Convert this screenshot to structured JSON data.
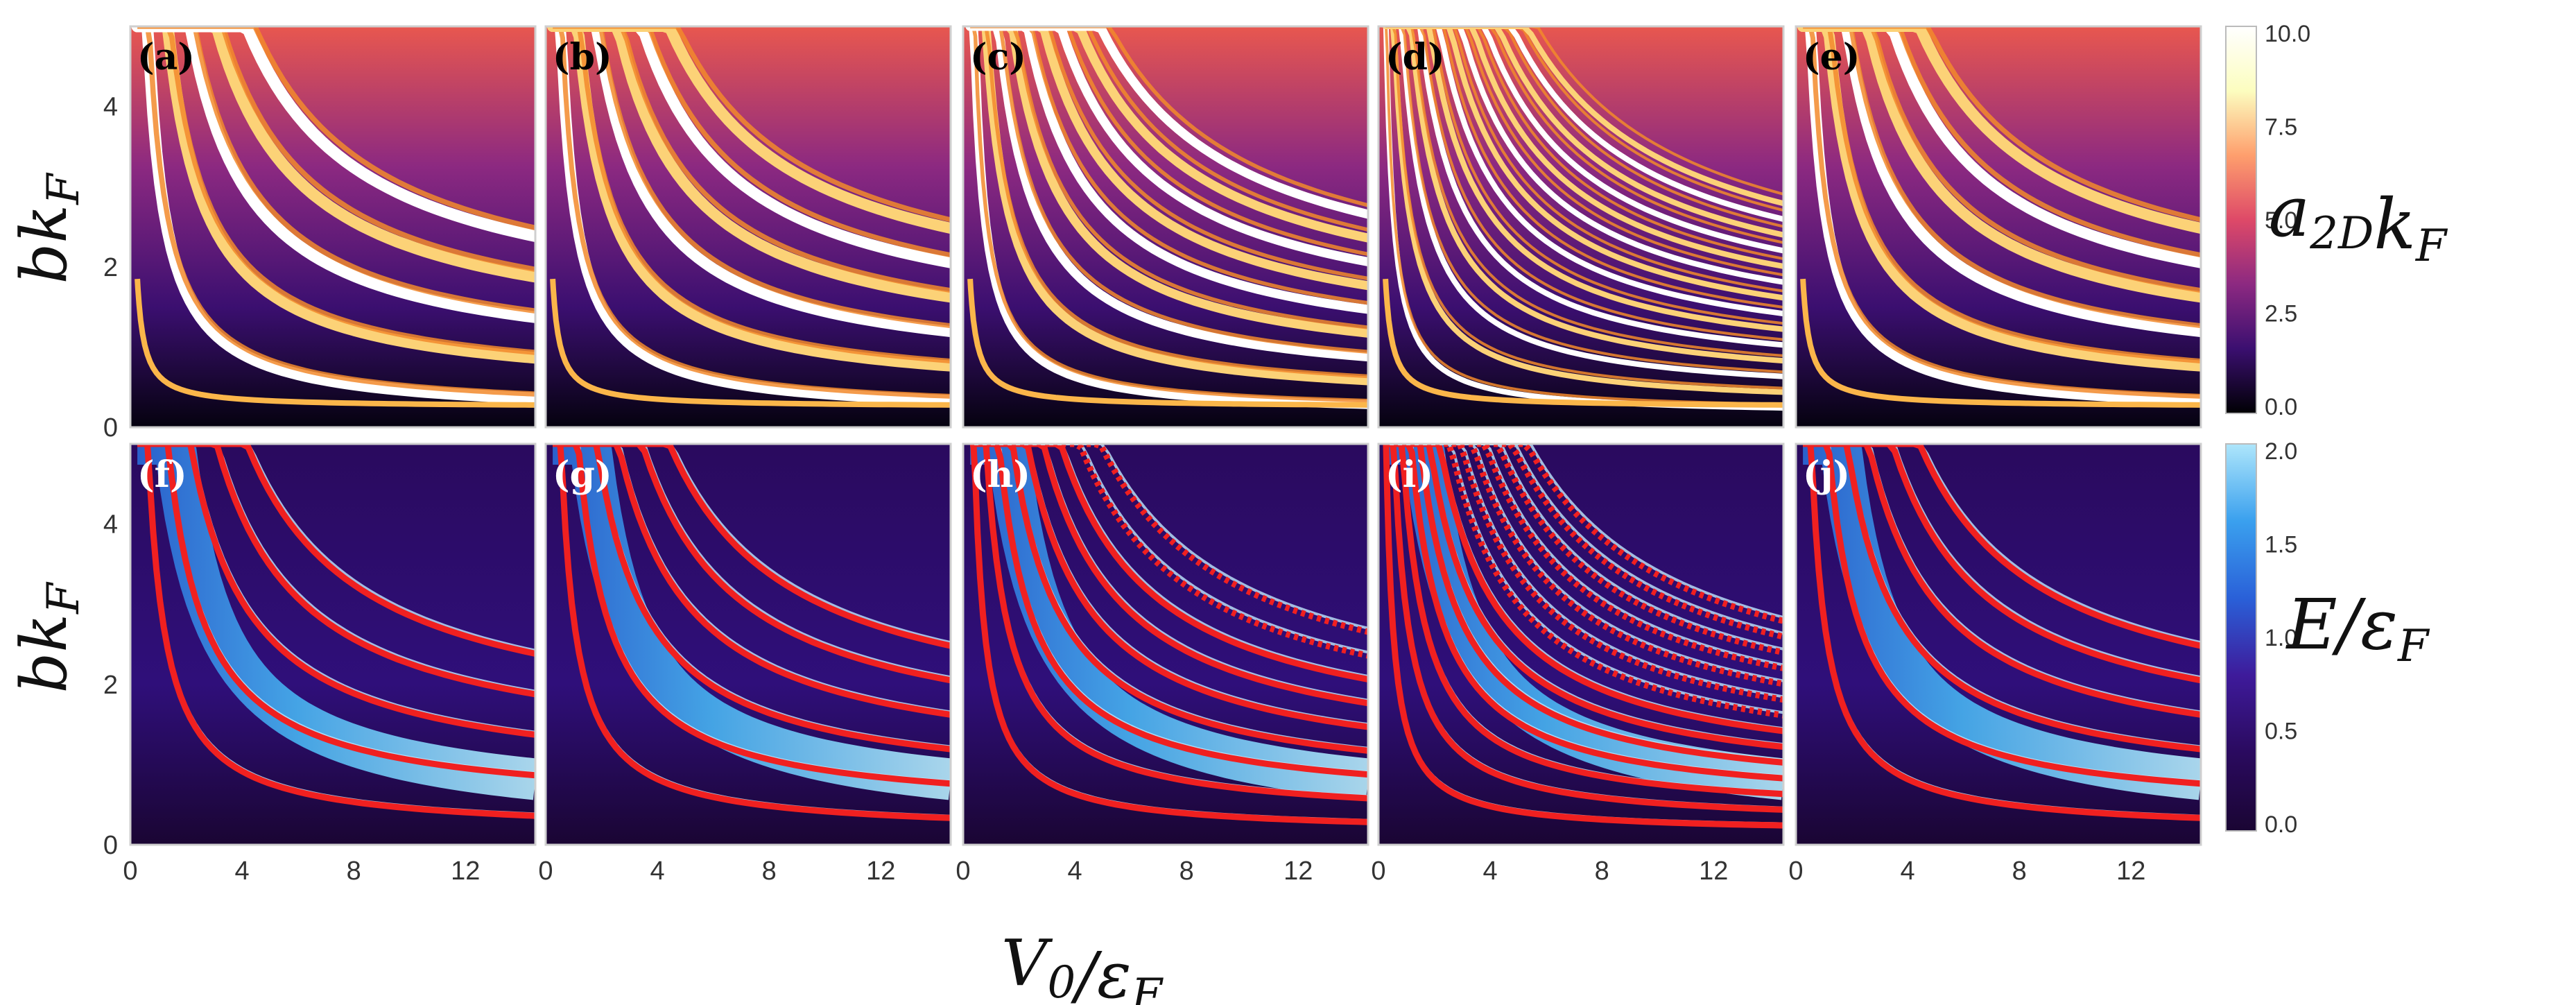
{
  "chart_data": {
    "type": "heatmap",
    "rows": [
      {
        "name": "top",
        "quantity_label": {
          "main": "a",
          "sub": "2D",
          "tail": "k",
          "tail_sub": "F"
        },
        "colorscale": [
          "#000004",
          "#3b0f70",
          "#8c2981",
          "#de4968",
          "#fe9f6d",
          "#fcfdbf",
          "#ffffff"
        ],
        "colorbar_ticks": [
          "0.0",
          "2.5",
          "5.0",
          "7.5",
          "10.0"
        ],
        "colorbar_range": [
          0,
          10
        ],
        "panels": [
          {
            "label": "(a)",
            "label_color": "#000000",
            "n_curves": 5
          },
          {
            "label": "(b)",
            "label_color": "#000000",
            "n_curves": 6
          },
          {
            "label": "(c)",
            "label_color": "#000000",
            "n_curves": 9
          },
          {
            "label": "(d)",
            "label_color": "#000000",
            "n_curves": 14
          },
          {
            "label": "(e)",
            "label_color": "#000000",
            "n_curves": 6
          }
        ]
      },
      {
        "name": "bottom",
        "quantity_label": {
          "main": "E/ε",
          "sub": "F"
        },
        "colorscale": [
          "#1a0533",
          "#2a0a5e",
          "#3e1a9a",
          "#2a60d8",
          "#3aa0ee",
          "#aee6fb"
        ],
        "colorbar_ticks": [
          "0.0",
          "0.5",
          "1.0",
          "1.5",
          "2.0"
        ],
        "colorbar_range": [
          0,
          2
        ],
        "overlay_color": "#f02020",
        "panels": [
          {
            "label": "(f)",
            "label_color": "#ffffff",
            "n_curves": 5
          },
          {
            "label": "(g)",
            "label_color": "#ffffff",
            "n_curves": 6
          },
          {
            "label": "(h)",
            "label_color": "#ffffff",
            "n_curves": 9
          },
          {
            "label": "(i)",
            "label_color": "#ffffff",
            "n_curves": 14
          },
          {
            "label": "(j)",
            "label_color": "#ffffff",
            "n_curves": 6
          }
        ]
      }
    ],
    "x_ticks": [
      "0",
      "4",
      "8",
      "12"
    ],
    "x_tick_values": [
      0,
      4,
      8,
      12
    ],
    "xlim": [
      0,
      14.5
    ],
    "y_ticks": [
      "0",
      "2",
      "4"
    ],
    "y_tick_values": [
      0,
      2,
      4
    ],
    "ylim": [
      0,
      5
    ],
    "xlabel": {
      "main": "V",
      "sub": "0",
      "tail": "/ε",
      "tail_sub": "F"
    },
    "ylabel": {
      "main": "bk",
      "sub": "F"
    }
  }
}
